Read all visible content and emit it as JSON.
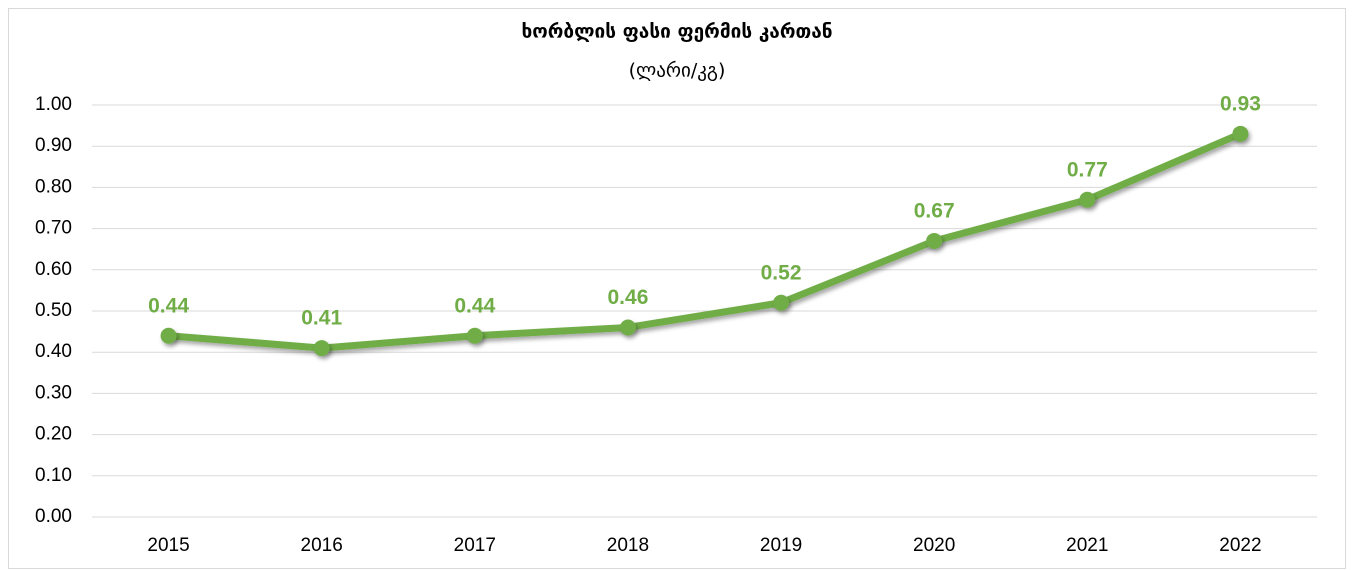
{
  "chart_data": {
    "type": "line",
    "title": "ხორბლის ფასი ფერმის კართან",
    "subtitle": "(ლარი/კგ)",
    "categories": [
      "2015",
      "2016",
      "2017",
      "2018",
      "2019",
      "2020",
      "2021",
      "2022"
    ],
    "values": [
      0.44,
      0.41,
      0.44,
      0.46,
      0.52,
      0.67,
      0.77,
      0.93
    ],
    "color": "#70ad47",
    "ylim": [
      0,
      1
    ],
    "yticks": [
      {
        "value": 0,
        "label": "0.00"
      },
      {
        "value": 0.1,
        "label": "0.10"
      },
      {
        "value": 0.2,
        "label": "0.20"
      },
      {
        "value": 0.3,
        "label": "0.30"
      },
      {
        "value": 0.4,
        "label": "0.40"
      },
      {
        "value": 0.5,
        "label": "0.50"
      },
      {
        "value": 0.6,
        "label": "0.60"
      },
      {
        "value": 0.7,
        "label": "0.70"
      },
      {
        "value": 0.8,
        "label": "0.80"
      },
      {
        "value": 0.9,
        "label": "0.90"
      },
      {
        "value": 1,
        "label": "1.00"
      }
    ],
    "grid": true
  }
}
